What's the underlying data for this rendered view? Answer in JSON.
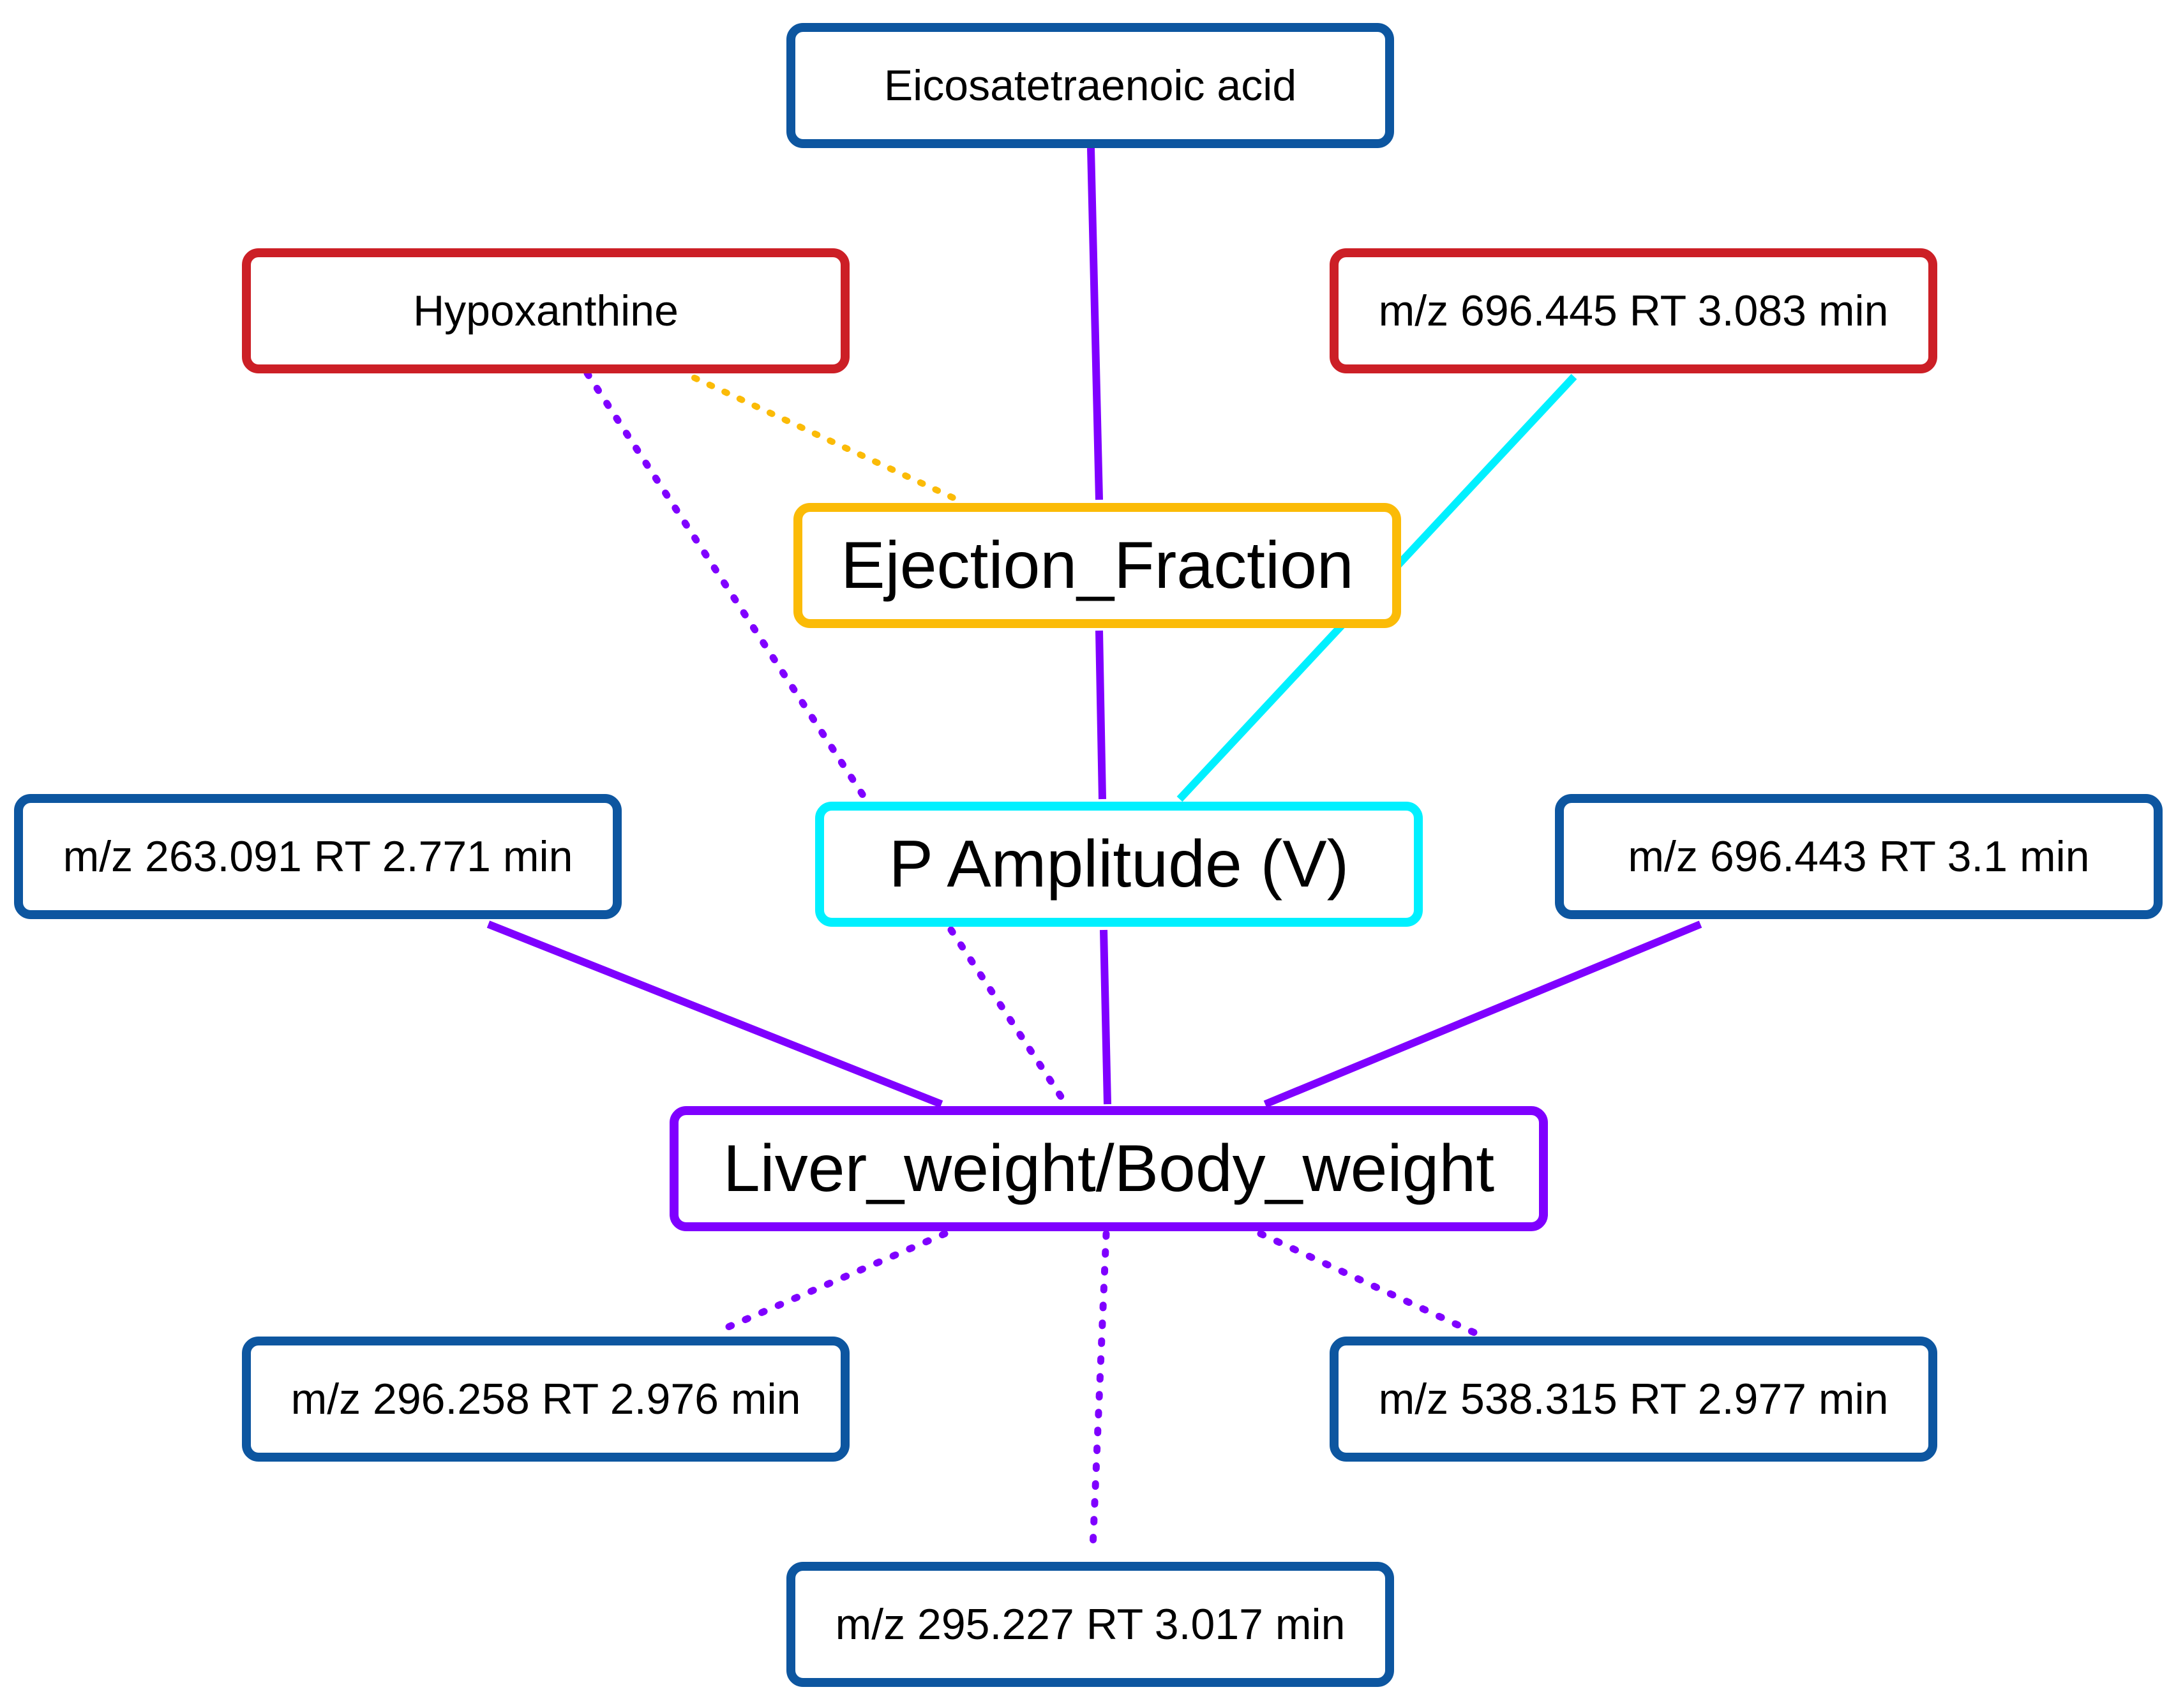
{
  "colors": {
    "metabolite_border": "#0d56a0",
    "hub_metabolite_border": "#cc1f26",
    "ejection_fraction": "#fbbb07",
    "p_amplitude": "#00f0ff",
    "liver_body_weight": "#7f00ff"
  },
  "nodes": {
    "eicosatetraenoic": "Eicosatetraenoic acid",
    "hypoxanthine": "Hypoxanthine",
    "mz_696_445": "m/z 696.445 RT 3.083 min",
    "ejection_fraction": "Ejection_Fraction",
    "mz_263_091": "m/z 263.091 RT 2.771 min",
    "p_amplitude": "P Amplitude (V)",
    "mz_696_443": "m/z 696.443 RT 3.1 min",
    "liver_body_weight": "Liver_weight/Body_weight",
    "mz_296_258": "m/z 296.258 RT 2.976 min",
    "mz_538_315": "m/z 538.315 RT 2.977 min",
    "mz_295_227": "m/z 295.227 RT 3.017 min"
  },
  "edges": [
    {
      "from": "eicosatetraenoic",
      "to": "ejection_fraction",
      "style": "solid",
      "color": "#7f00ff"
    },
    {
      "from": "hypoxanthine",
      "to": "ejection_fraction",
      "style": "dotted",
      "color": "#fbbb07"
    },
    {
      "from": "hypoxanthine",
      "to": "p_amplitude",
      "style": "dotted",
      "color": "#7f00ff"
    },
    {
      "from": "mz_696_445",
      "to": "p_amplitude",
      "style": "solid",
      "color": "#00f0ff"
    },
    {
      "from": "ejection_fraction",
      "to": "p_amplitude",
      "style": "solid",
      "color": "#7f00ff"
    },
    {
      "from": "p_amplitude",
      "to": "liver_body_weight",
      "style": "solid",
      "color": "#7f00ff"
    },
    {
      "from": "p_amplitude",
      "to": "liver_body_weight",
      "style": "dotted",
      "color": "#7f00ff"
    },
    {
      "from": "mz_263_091",
      "to": "liver_body_weight",
      "style": "solid",
      "color": "#7f00ff"
    },
    {
      "from": "mz_696_443",
      "to": "liver_body_weight",
      "style": "solid",
      "color": "#7f00ff"
    },
    {
      "from": "liver_body_weight",
      "to": "mz_296_258",
      "style": "dotted",
      "color": "#7f00ff"
    },
    {
      "from": "liver_body_weight",
      "to": "mz_295_227",
      "style": "dotted",
      "color": "#7f00ff"
    },
    {
      "from": "liver_body_weight",
      "to": "mz_538_315",
      "style": "dotted",
      "color": "#7f00ff"
    }
  ]
}
